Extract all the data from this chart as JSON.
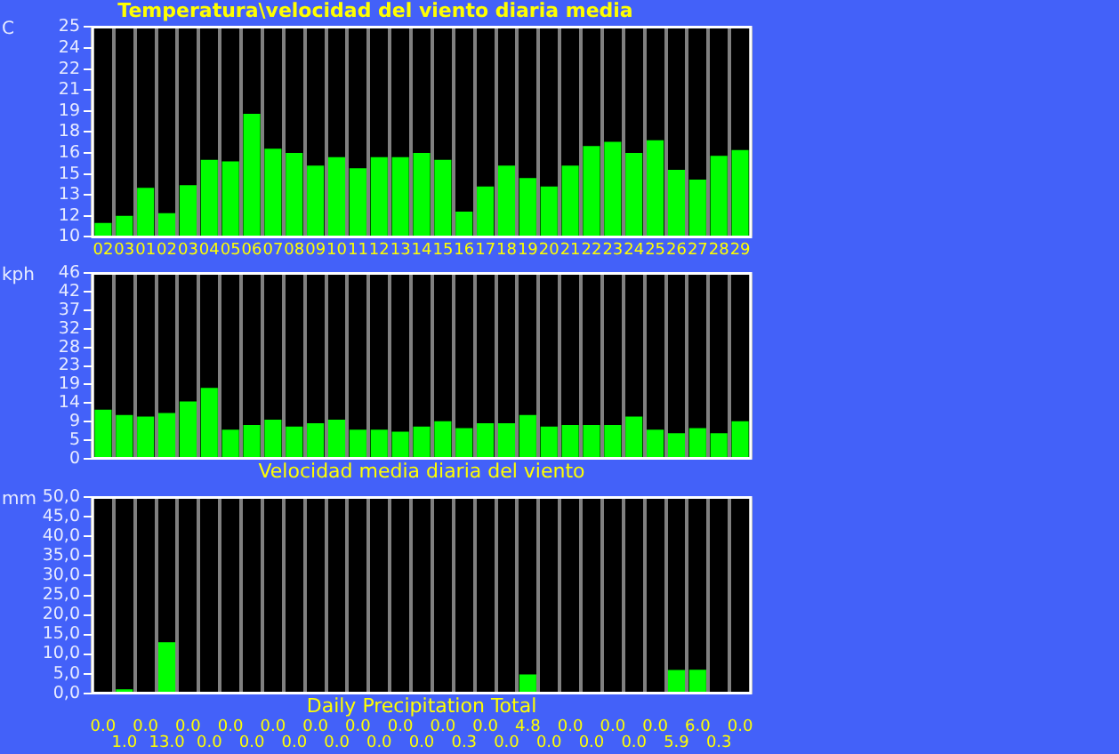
{
  "chart_data": [
    {
      "type": "bar",
      "title": "Temperatura\\velocidad del viento diaria media",
      "ylabel": "C",
      "categories": [
        "02",
        "03",
        "01",
        "02",
        "03",
        "04",
        "05",
        "06",
        "07",
        "08",
        "09",
        "10",
        "11",
        "12",
        "13",
        "14",
        "15",
        "16",
        "17",
        "18",
        "19",
        "20",
        "21",
        "22",
        "23",
        "24",
        "25",
        "26",
        "27",
        "28",
        "29"
      ],
      "series": [
        {
          "color": "#00ff00",
          "values": [
            11.0,
            11.5,
            13.5,
            11.7,
            13.7,
            15.5,
            15.4,
            18.8,
            16.3,
            16.0,
            15.1,
            15.7,
            14.9,
            15.7,
            15.7,
            16.0,
            15.5,
            11.8,
            13.6,
            15.1,
            14.2,
            13.6,
            15.1,
            16.5,
            16.8,
            16.0,
            16.9,
            14.8,
            14.1,
            15.8,
            16.2
          ]
        }
      ],
      "ylim": [
        10,
        25
      ],
      "yticks": [
        10,
        {
          "value": 11.5,
          "label": "12"
        },
        13,
        {
          "value": 14.5,
          "label": "15"
        },
        16,
        {
          "value": 17.5,
          "label": "18"
        },
        19,
        {
          "value": 20.5,
          "label": "21"
        },
        22,
        {
          "value": 23.5,
          "label": "24"
        },
        25
      ],
      "grid": "x",
      "legend": false
    },
    {
      "type": "bar",
      "xlabel": "Velocidad media diaria del viento",
      "ylabel": "kph",
      "categories": [
        "02",
        "03",
        "01",
        "02",
        "03",
        "04",
        "05",
        "06",
        "07",
        "08",
        "09",
        "10",
        "11",
        "12",
        "13",
        "14",
        "15",
        "16",
        "17",
        "18",
        "19",
        "20",
        "21",
        "22",
        "23",
        "24",
        "25",
        "26",
        "27",
        "28",
        "29"
      ],
      "series": [
        {
          "color": "#00ff00",
          "values": [
            12.2,
            10.9,
            10.5,
            11.4,
            14.3,
            17.7,
            7.2,
            8.4,
            9.7,
            8.0,
            8.8,
            9.7,
            7.2,
            7.2,
            6.7,
            8.0,
            9.3,
            7.6,
            8.8,
            8.8,
            10.9,
            8.0,
            8.4,
            8.4,
            8.4,
            10.5,
            7.2,
            6.3,
            7.6,
            6.3,
            9.3
          ]
        }
      ],
      "ylim": [
        0,
        46.4
      ],
      "yticks": [
        0,
        {
          "value": 4.64,
          "label": "5"
        },
        {
          "value": 9.28,
          "label": "9"
        },
        {
          "value": 13.92,
          "label": "14"
        },
        {
          "value": 18.56,
          "label": "19"
        },
        {
          "value": 23.2,
          "label": "23"
        },
        {
          "value": 27.84,
          "label": "28"
        },
        {
          "value": 32.48,
          "label": "32"
        },
        {
          "value": 37.12,
          "label": "37"
        },
        {
          "value": 41.76,
          "label": "42"
        },
        {
          "value": 46.4,
          "label": "46"
        }
      ],
      "grid": "x",
      "legend": false,
      "tick_labels": "y"
    },
    {
      "type": "bar",
      "xlabel": "Daily Precipitation Total",
      "ylabel": "mm",
      "categories": [
        "02",
        "03",
        "01",
        "02",
        "03",
        "04",
        "05",
        "06",
        "07",
        "08",
        "09",
        "10",
        "11",
        "12",
        "13",
        "14",
        "15",
        "16",
        "17",
        "18",
        "19",
        "20",
        "21",
        "22",
        "23",
        "24",
        "25",
        "26",
        "27",
        "28",
        "29"
      ],
      "series": [
        {
          "color": "#00ff00",
          "values": [
            0.0,
            1.0,
            0.0,
            13.0,
            0.0,
            0.0,
            0.0,
            0.0,
            0.0,
            0.0,
            0.0,
            0.0,
            0.0,
            0.0,
            0.0,
            0.0,
            0.0,
            0.3,
            0.0,
            0.0,
            4.8,
            0.0,
            0.0,
            0.0,
            0.0,
            0.0,
            0.0,
            5.9,
            6.0,
            0.3,
            0.0
          ],
          "value_labels": [
            "0.0",
            "1.0",
            "0.0",
            "13.0",
            "0.0",
            "0.0",
            "0.0",
            "0.0",
            "0.0",
            "0.0",
            "0.0",
            "0.0",
            "0.0",
            "0.0",
            "0.0",
            "0.0",
            "0.0",
            "0.3",
            "0.0",
            "0.0",
            "4.8",
            "0.0",
            "0.0",
            "0.0",
            "0.0",
            "0.0",
            "0.0",
            "5.9",
            "6.0",
            "0.3",
            "0.0"
          ]
        }
      ],
      "ylim": [
        0,
        50
      ],
      "yticks": [
        {
          "value": 0,
          "label": "0,0"
        },
        {
          "value": 5,
          "label": "5,0"
        },
        {
          "value": 10,
          "label": "10,0"
        },
        {
          "value": 15,
          "label": "15,0"
        },
        {
          "value": 20,
          "label": "20,0"
        },
        {
          "value": 25,
          "label": "25,0"
        },
        {
          "value": 30,
          "label": "30,0"
        },
        {
          "value": 35,
          "label": "35,0"
        },
        {
          "value": 40,
          "label": "40,0"
        },
        {
          "value": 45,
          "label": "45,0"
        },
        {
          "value": 50,
          "label": "50,0"
        }
      ],
      "grid": "x",
      "legend": false,
      "tick_labels": "y"
    }
  ]
}
